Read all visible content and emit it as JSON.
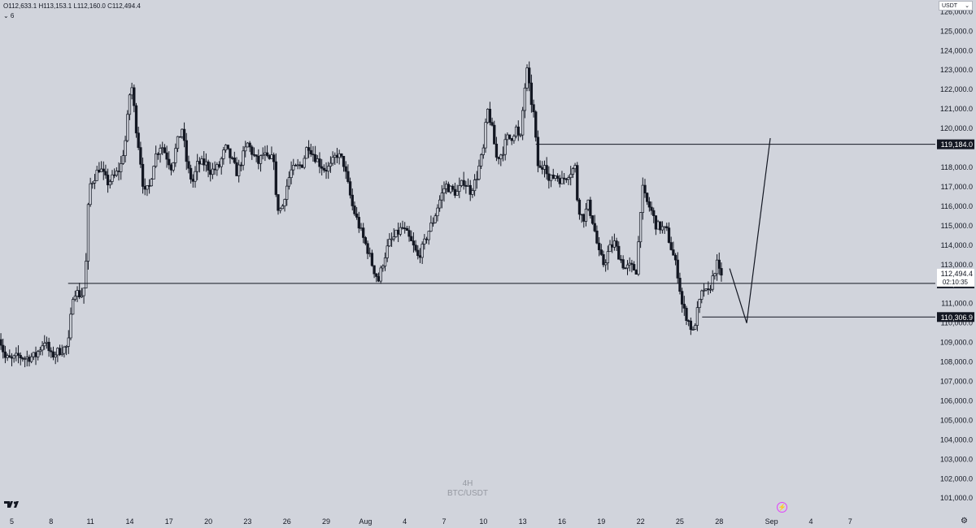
{
  "header": {
    "ohlc_text": "O112,633.1 H113,153.1 L112,160.0 C112,494.4",
    "indicator_toggle": "⌄ 6"
  },
  "currency": {
    "label": "USDT",
    "arrow": "⌄"
  },
  "watermark": {
    "interval": "4H",
    "symbol": "BTC/USDT"
  },
  "footer": {
    "settings_icon": "gear-icon"
  },
  "colors": {
    "background": "#d1d4dc",
    "candle": "#131722",
    "line": "#131722",
    "price_label_bg": "#131722",
    "price_label_text": "#ffffff",
    "current_price_bg": "#ffffff"
  },
  "chart_data": {
    "type": "candlestick",
    "y_axis_ticks": [
      "101,000.0",
      "102,000.0",
      "103,000.0",
      "104,000.0",
      "105,000.0",
      "106,000.0",
      "107,000.0",
      "108,000.0",
      "109,000.0",
      "110,000.0",
      "111,000.0",
      "113,000.0",
      "114,000.0",
      "115,000.0",
      "116,000.0",
      "117,000.0",
      "118,000.0",
      "120,000.0",
      "121,000.0",
      "122,000.0",
      "123,000.0",
      "124,000.0",
      "125,000.0",
      "126,000.0"
    ],
    "x_axis_ticks": [
      {
        "label": "5",
        "x": 5
      },
      {
        "label": "8",
        "x": 8
      },
      {
        "label": "11",
        "x": 11
      },
      {
        "label": "14",
        "x": 14
      },
      {
        "label": "17",
        "x": 17
      },
      {
        "label": "20",
        "x": 20
      },
      {
        "label": "23",
        "x": 23
      },
      {
        "label": "26",
        "x": 26
      },
      {
        "label": "29",
        "x": 29
      },
      {
        "label": "Aug",
        "x": 32
      },
      {
        "label": "4",
        "x": 35
      },
      {
        "label": "7",
        "x": 38
      },
      {
        "label": "10",
        "x": 41
      },
      {
        "label": "13",
        "x": 44
      },
      {
        "label": "16",
        "x": 47
      },
      {
        "label": "19",
        "x": 50
      },
      {
        "label": "22",
        "x": 53
      },
      {
        "label": "25",
        "x": 56
      },
      {
        "label": "28",
        "x": 59
      },
      {
        "label": "Sep",
        "x": 63
      },
      {
        "label": "4",
        "x": 66
      },
      {
        "label": "7",
        "x": 69
      }
    ],
    "ylim": [
      100300,
      126600
    ],
    "xlim": [
      4.1,
      75.5
    ],
    "price_path": [
      [
        4.0,
        109400
      ],
      [
        4.5,
        108200
      ],
      [
        5.0,
        108100
      ],
      [
        5.5,
        108300
      ],
      [
        6.0,
        108200
      ],
      [
        6.8,
        108300
      ],
      [
        7.5,
        109100
      ],
      [
        8.0,
        108300
      ],
      [
        8.7,
        108600
      ],
      [
        9.3,
        108800
      ],
      [
        9.7,
        111700
      ],
      [
        10.3,
        111400
      ],
      [
        10.6,
        112000
      ],
      [
        10.9,
        117000
      ],
      [
        11.3,
        117500
      ],
      [
        11.7,
        118000
      ],
      [
        12.3,
        117200
      ],
      [
        12.8,
        117500
      ],
      [
        13.3,
        118000
      ],
      [
        13.7,
        119500
      ],
      [
        14.1,
        122500
      ],
      [
        14.5,
        120000
      ],
      [
        14.8,
        118500
      ],
      [
        15.1,
        116600
      ],
      [
        15.5,
        117000
      ],
      [
        15.9,
        118500
      ],
      [
        16.4,
        119200
      ],
      [
        16.8,
        118600
      ],
      [
        17.2,
        118000
      ],
      [
        17.6,
        119200
      ],
      [
        18.0,
        120000
      ],
      [
        18.4,
        118000
      ],
      [
        18.8,
        117200
      ],
      [
        19.2,
        118200
      ],
      [
        19.8,
        118200
      ],
      [
        20.2,
        117800
      ],
      [
        20.8,
        118000
      ],
      [
        21.3,
        119000
      ],
      [
        21.7,
        118500
      ],
      [
        22.2,
        117700
      ],
      [
        22.6,
        118500
      ],
      [
        23.0,
        119200
      ],
      [
        23.4,
        118700
      ],
      [
        23.8,
        118200
      ],
      [
        24.2,
        118700
      ],
      [
        24.6,
        118300
      ],
      [
        25.0,
        118500
      ],
      [
        25.2,
        116000
      ],
      [
        25.6,
        115800
      ],
      [
        25.9,
        116800
      ],
      [
        26.3,
        117800
      ],
      [
        26.8,
        118000
      ],
      [
        27.2,
        118200
      ],
      [
        27.6,
        119200
      ],
      [
        28.0,
        118700
      ],
      [
        28.5,
        118200
      ],
      [
        28.9,
        117900
      ],
      [
        29.3,
        118000
      ],
      [
        29.8,
        118700
      ],
      [
        30.3,
        118300
      ],
      [
        30.6,
        117300
      ],
      [
        31.0,
        116000
      ],
      [
        31.4,
        115200
      ],
      [
        31.8,
        114400
      ],
      [
        32.2,
        113700
      ],
      [
        32.6,
        112800
      ],
      [
        33.0,
        112200
      ],
      [
        33.4,
        113300
      ],
      [
        33.8,
        114100
      ],
      [
        34.3,
        114500
      ],
      [
        34.8,
        114900
      ],
      [
        35.2,
        114500
      ],
      [
        35.6,
        114000
      ],
      [
        36.0,
        113400
      ],
      [
        36.4,
        113900
      ],
      [
        36.8,
        114700
      ],
      [
        37.2,
        115300
      ],
      [
        37.6,
        116200
      ],
      [
        38.1,
        117100
      ],
      [
        38.6,
        116800
      ],
      [
        39.0,
        116700
      ],
      [
        39.5,
        117300
      ],
      [
        40.0,
        116800
      ],
      [
        40.4,
        117300
      ],
      [
        40.7,
        118100
      ],
      [
        41.0,
        118900
      ],
      [
        41.3,
        121000
      ],
      [
        41.6,
        120200
      ],
      [
        42.0,
        118500
      ],
      [
        42.4,
        118700
      ],
      [
        42.8,
        119500
      ],
      [
        43.1,
        119500
      ],
      [
        43.5,
        120000
      ],
      [
        43.8,
        119200
      ],
      [
        44.0,
        120900
      ],
      [
        44.3,
        123100
      ],
      [
        44.6,
        121600
      ],
      [
        44.9,
        120500
      ],
      [
        45.1,
        118200
      ],
      [
        45.4,
        117800
      ],
      [
        45.7,
        118400
      ],
      [
        46.0,
        117300
      ],
      [
        46.5,
        117600
      ],
      [
        47.0,
        117300
      ],
      [
        47.5,
        117700
      ],
      [
        48.0,
        118000
      ],
      [
        48.2,
        116100
      ],
      [
        48.6,
        115300
      ],
      [
        49.0,
        116100
      ],
      [
        49.4,
        115100
      ],
      [
        49.8,
        113600
      ],
      [
        50.2,
        113000
      ],
      [
        50.6,
        113800
      ],
      [
        51.0,
        114100
      ],
      [
        51.4,
        113400
      ],
      [
        51.8,
        112800
      ],
      [
        52.2,
        112900
      ],
      [
        52.7,
        112700
      ],
      [
        53.1,
        117000
      ],
      [
        53.4,
        116300
      ],
      [
        53.8,
        115800
      ],
      [
        54.2,
        115000
      ],
      [
        54.6,
        114900
      ],
      [
        55.0,
        114700
      ],
      [
        55.4,
        113700
      ],
      [
        55.8,
        112700
      ],
      [
        56.2,
        110800
      ],
      [
        56.6,
        110200
      ],
      [
        57.0,
        109500
      ],
      [
        57.4,
        110800
      ],
      [
        57.8,
        111800
      ],
      [
        58.1,
        111400
      ],
      [
        58.5,
        112300
      ],
      [
        58.8,
        113100
      ],
      [
        59.0,
        112600
      ],
      [
        59.3,
        112500
      ]
    ],
    "horizontal_levels": [
      {
        "price": 112036.8,
        "label": "112,036.8",
        "x_start": 9.3
      },
      {
        "price": 110306.9,
        "label": "110,306.9",
        "x_start": 57.7
      },
      {
        "price": 119184.0,
        "label": "119,184.0",
        "x_start": 45.0
      }
    ],
    "current_price": {
      "price": 112494.4,
      "label": "112,494.4",
      "countdown": "02:10:35"
    },
    "projection_path": [
      [
        59.8,
        112800
      ],
      [
        61.1,
        110000
      ],
      [
        62.9,
        119500
      ]
    ]
  }
}
